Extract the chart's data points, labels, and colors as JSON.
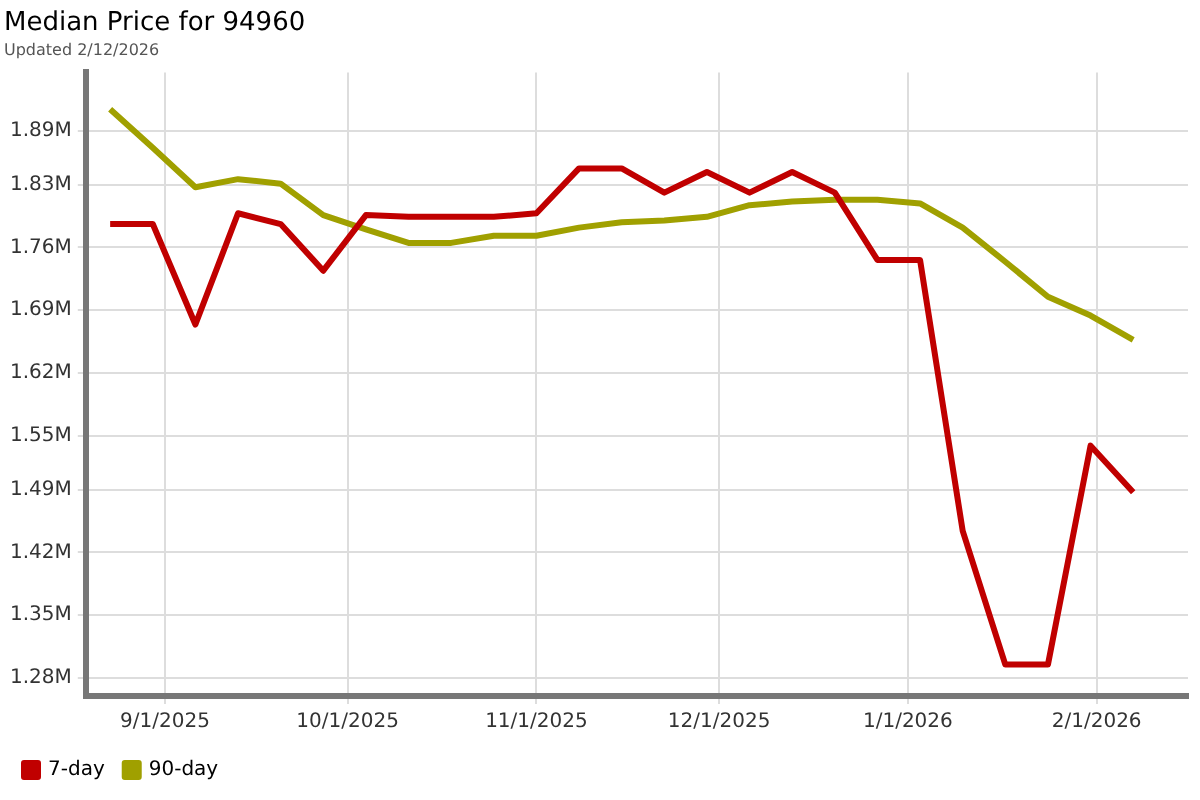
{
  "chart_data": {
    "type": "line",
    "title": "Median Price for 94960",
    "subtitle": "Updated 2/12/2026",
    "x": [
      "2025-08-23",
      "2025-08-30",
      "2025-09-06",
      "2025-09-13",
      "2025-09-20",
      "2025-09-27",
      "2025-10-04",
      "2025-10-11",
      "2025-10-18",
      "2025-10-25",
      "2025-11-01",
      "2025-11-08",
      "2025-11-15",
      "2025-11-22",
      "2025-11-29",
      "2025-12-06",
      "2025-12-13",
      "2025-12-20",
      "2025-12-27",
      "2026-01-03",
      "2026-01-10",
      "2026-01-17",
      "2026-01-24",
      "2026-01-31",
      "2026-02-07"
    ],
    "series": [
      {
        "name": "7-day",
        "color": "#c00000",
        "values": [
          1.786,
          1.786,
          1.674,
          1.798,
          1.786,
          1.734,
          1.796,
          1.794,
          1.794,
          1.794,
          1.798,
          1.848,
          1.848,
          1.821,
          1.844,
          1.821,
          1.844,
          1.821,
          1.746,
          1.746,
          1.444,
          1.295,
          1.295,
          1.539,
          1.487
        ]
      },
      {
        "name": "90-day",
        "color": "#a0a000",
        "values": [
          1.914,
          1.871,
          1.827,
          1.836,
          1.831,
          1.796,
          1.78,
          1.765,
          1.765,
          1.773,
          1.773,
          1.782,
          1.788,
          1.79,
          1.794,
          1.807,
          1.811,
          1.813,
          1.813,
          1.809,
          1.782,
          1.744,
          1.705,
          1.684,
          1.657
        ]
      }
    ],
    "xlim": [
      "2025-08-19",
      "2026-02-16"
    ],
    "xticks": [
      {
        "value": "2025-09-01",
        "label": "9/1/2025"
      },
      {
        "value": "2025-10-01",
        "label": "10/1/2025"
      },
      {
        "value": "2025-11-01",
        "label": "11/1/2025"
      },
      {
        "value": "2025-12-01",
        "label": "12/1/2025"
      },
      {
        "value": "2026-01-01",
        "label": "1/1/2026"
      },
      {
        "value": "2026-02-01",
        "label": "2/1/2026"
      }
    ],
    "ylim": [
      1.26,
      1.955
    ],
    "yticks": [
      {
        "value": 1.28,
        "label": "1.28M"
      },
      {
        "value": 1.35,
        "label": "1.35M"
      },
      {
        "value": 1.42,
        "label": "1.42M"
      },
      {
        "value": 1.49,
        "label": "1.49M"
      },
      {
        "value": 1.55,
        "label": "1.55M"
      },
      {
        "value": 1.62,
        "label": "1.62M"
      },
      {
        "value": 1.69,
        "label": "1.69M"
      },
      {
        "value": 1.76,
        "label": "1.76M"
      },
      {
        "value": 1.83,
        "label": "1.83M"
      },
      {
        "value": 1.89,
        "label": "1.89M"
      }
    ],
    "grid": true,
    "legend": "bottom left",
    "marker": "none",
    "line_style": "solid"
  }
}
